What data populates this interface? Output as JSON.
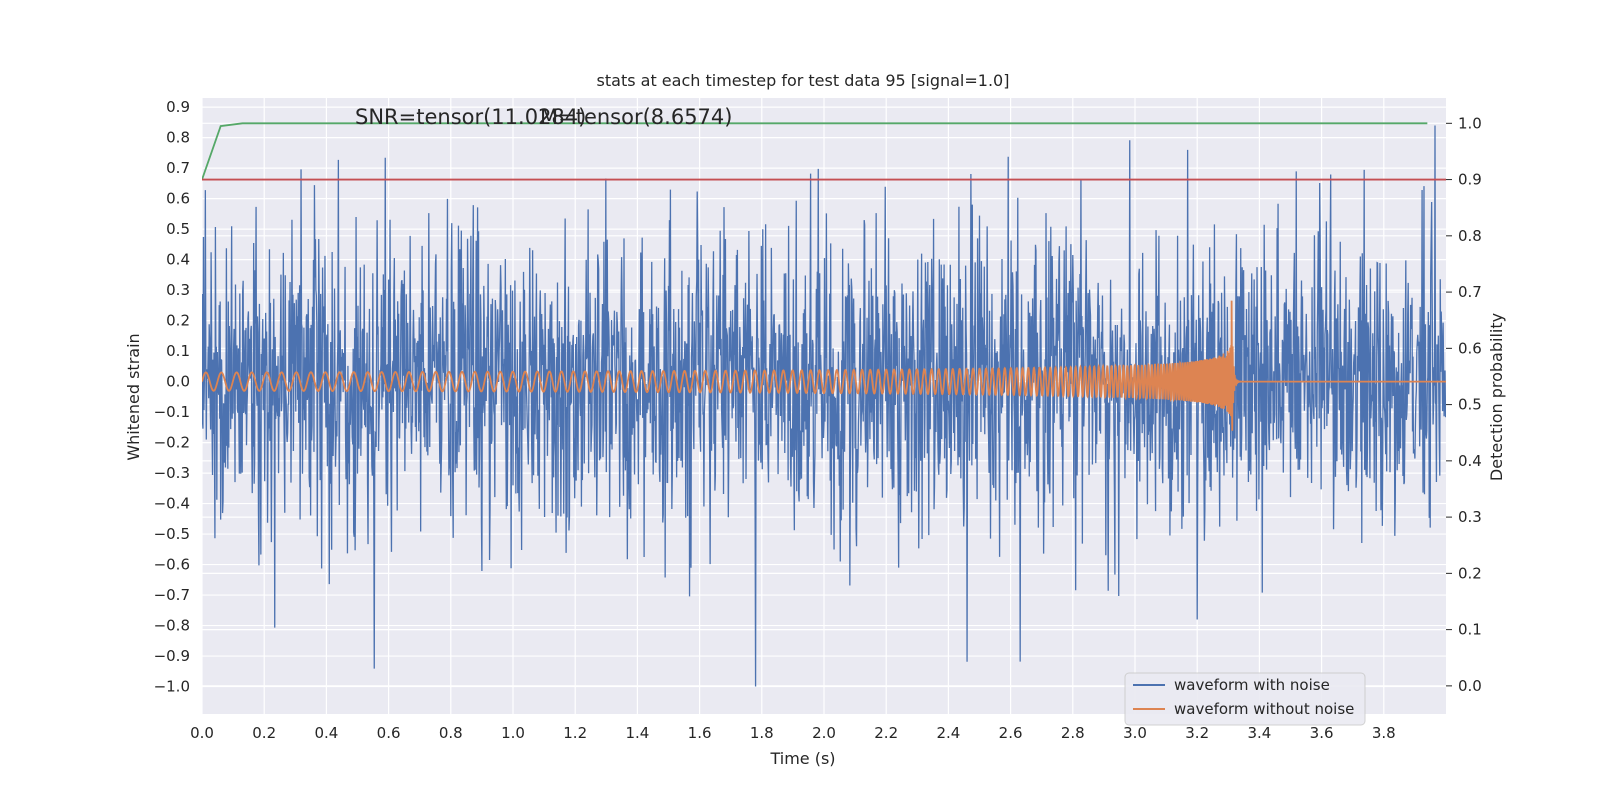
{
  "chart_data": {
    "type": "line",
    "title": "stats at each timestep for test data 95 [signal=1.0]",
    "xlabel": "Time (s)",
    "ylabel": "Whitened strain",
    "y2label": "Detection probability",
    "xlim": [
      0.0,
      4.0
    ],
    "ylim": [
      -1.09,
      0.93
    ],
    "y2lim": [
      -0.05,
      1.045
    ],
    "x_ticks": [
      "0.0",
      "0.2",
      "0.4",
      "0.6",
      "0.8",
      "1.0",
      "1.2",
      "1.4",
      "1.6",
      "1.8",
      "2.0",
      "2.2",
      "2.4",
      "2.6",
      "2.8",
      "3.0",
      "3.2",
      "3.4",
      "3.6",
      "3.8"
    ],
    "y_ticks": [
      "0.9",
      "0.8",
      "0.7",
      "0.6",
      "0.5",
      "0.4",
      "0.3",
      "0.2",
      "0.1",
      "0.0",
      "−0.1",
      "−0.2",
      "−0.3",
      "−0.4",
      "−0.5",
      "−0.6",
      "−0.7",
      "−0.8",
      "−0.9",
      "−1.0"
    ],
    "y2_ticks": [
      "1.0",
      "0.9",
      "0.8",
      "0.7",
      "0.6",
      "0.5",
      "0.4",
      "0.3",
      "0.2",
      "0.1",
      "0.0"
    ],
    "grid": true,
    "legend_position": "lower-right",
    "annotations": [
      "SNR=tensor(11.0284)",
      "M=tensor(8.6574)"
    ],
    "series": [
      {
        "name": "waveform with noise",
        "color": "#4c72b0",
        "axis": "left",
        "description_values": "noise between about -1.0 and 0.84",
        "x_range": [
          0.0,
          4.0
        ],
        "amplitude": 0.3
      },
      {
        "name": "waveform without noise",
        "color": "#dd8452",
        "axis": "left",
        "chirp_start_amplitude": 0.03,
        "chirp_peak_amplitude": 0.33,
        "merger_time": 3.31,
        "x_range": [
          0.0,
          4.0
        ]
      },
      {
        "color": "#55a868",
        "axis": "right",
        "x": [
          0.0,
          0.06,
          0.13,
          0.2,
          3.94
        ],
        "y": [
          0.9,
          0.995,
          1.0,
          1.0,
          1.0
        ]
      },
      {
        "color": "#c44e52",
        "axis": "right",
        "x": [
          0.0,
          4.0
        ],
        "y": [
          0.9,
          0.9
        ]
      }
    ]
  }
}
